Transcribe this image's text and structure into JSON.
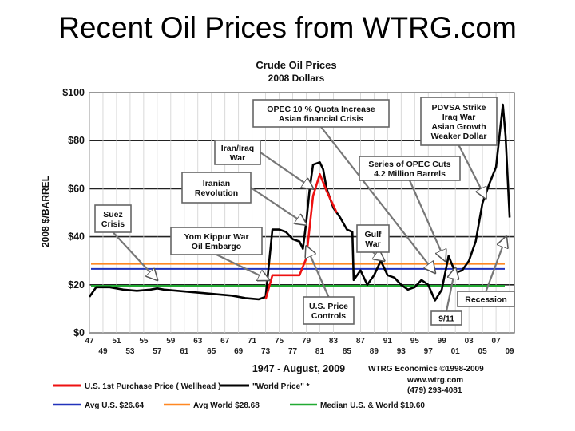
{
  "slide": {
    "title": "Recent Oil Prices from WTRG.com"
  },
  "chart_data": {
    "type": "line",
    "title": "Crude Oil Prices",
    "subtitle": "2008 Dollars",
    "ylabel": "2008 $/BARREL",
    "xlabel": "1947 - August, 2009",
    "ylim": [
      0,
      100
    ],
    "xlim": [
      1947,
      2009.7
    ],
    "yticks": [
      {
        "value": 0,
        "label": "$0"
      },
      {
        "value": 20,
        "label": "$20"
      },
      {
        "value": 40,
        "label": "$40"
      },
      {
        "value": 60,
        "label": "$60"
      },
      {
        "value": 80,
        "label": "$80"
      },
      {
        "value": 100,
        "label": "$100"
      }
    ],
    "xticks_top": [
      "47",
      "51",
      "55",
      "59",
      "63",
      "67",
      "71",
      "75",
      "79",
      "83",
      "87",
      "91",
      "95",
      "99",
      "03",
      "07"
    ],
    "xticks_top_years": [
      1947,
      1951,
      1955,
      1959,
      1963,
      1967,
      1971,
      1975,
      1979,
      1983,
      1987,
      1991,
      1995,
      1999,
      2003,
      2007
    ],
    "xticks_bottom": [
      "49",
      "53",
      "57",
      "61",
      "65",
      "69",
      "73",
      "77",
      "81",
      "85",
      "89",
      "93",
      "97",
      "01",
      "05",
      "09"
    ],
    "xticks_bottom_years": [
      1949,
      1953,
      1957,
      1961,
      1965,
      1969,
      1973,
      1977,
      1981,
      1985,
      1989,
      1993,
      1997,
      2001,
      2005,
      2009
    ],
    "grid": true,
    "series": [
      {
        "name": "\"World Price\" *",
        "color": "#000000",
        "points": [
          [
            1947,
            15
          ],
          [
            1948,
            19
          ],
          [
            1950,
            19
          ],
          [
            1952,
            18
          ],
          [
            1954,
            17.5
          ],
          [
            1956,
            18
          ],
          [
            1957,
            18.5
          ],
          [
            1958,
            18
          ],
          [
            1960,
            17.5
          ],
          [
            1962,
            17
          ],
          [
            1964,
            16.5
          ],
          [
            1966,
            16
          ],
          [
            1968,
            15.5
          ],
          [
            1970,
            14.5
          ],
          [
            1972,
            14
          ],
          [
            1973,
            15
          ],
          [
            1974,
            43
          ],
          [
            1975,
            43
          ],
          [
            1976,
            42
          ],
          [
            1977,
            39
          ],
          [
            1978,
            38
          ],
          [
            1978.5,
            35
          ],
          [
            1979,
            46
          ],
          [
            1979.5,
            60
          ],
          [
            1980,
            70
          ],
          [
            1981,
            71
          ],
          [
            1981.5,
            68
          ],
          [
            1982,
            60
          ],
          [
            1983,
            52
          ],
          [
            1984,
            48
          ],
          [
            1985,
            43
          ],
          [
            1985.8,
            42
          ],
          [
            1986,
            22
          ],
          [
            1987,
            26
          ],
          [
            1988,
            20
          ],
          [
            1989,
            24
          ],
          [
            1990,
            30
          ],
          [
            1991,
            24
          ],
          [
            1992,
            23
          ],
          [
            1993,
            20
          ],
          [
            1994,
            18
          ],
          [
            1995,
            19
          ],
          [
            1996,
            22
          ],
          [
            1997,
            20
          ],
          [
            1998,
            13.5
          ],
          [
            1999,
            18
          ],
          [
            2000,
            32
          ],
          [
            2001,
            25
          ],
          [
            2002,
            26
          ],
          [
            2003,
            30
          ],
          [
            2004,
            38
          ],
          [
            2005,
            54
          ],
          [
            2006,
            62
          ],
          [
            2007,
            69
          ],
          [
            2008,
            95
          ],
          [
            2008.4,
            82
          ],
          [
            2009,
            48
          ]
        ]
      },
      {
        "name": "U.S. 1st Purchase Price ( Wellhead )",
        "color": "#ee1111",
        "points": [
          [
            1973,
            14
          ],
          [
            1974,
            24
          ],
          [
            1975,
            24
          ],
          [
            1976,
            24
          ],
          [
            1977,
            24
          ],
          [
            1978,
            24
          ],
          [
            1979,
            31
          ],
          [
            1980,
            57
          ],
          [
            1981,
            66
          ],
          [
            1982,
            59
          ],
          [
            1983,
            53
          ],
          [
            1983.5,
            50
          ]
        ]
      }
    ],
    "reference_lines": [
      {
        "name": "Avg U.S. $26.64",
        "value": 26.64,
        "color": "#2233bb"
      },
      {
        "name": "Avg World $28.68",
        "value": 28.68,
        "color": "#ff8822"
      },
      {
        "name": "Median U.S. & World $19.60",
        "value": 19.6,
        "color": "#22aa33"
      }
    ],
    "annotations": [
      {
        "text": [
          "OPEC 10 % Quota Increase",
          "Asian financial Crisis"
        ],
        "x": 1998,
        "y": 25
      },
      {
        "text": [
          "PDVSA Strike",
          "Iraq War",
          "Asian Growth",
          "Weaker Dollar"
        ],
        "x": 2005.5,
        "y": 56
      },
      {
        "text": [
          "Iran/Iraq",
          "War"
        ],
        "x": 1980,
        "y": 60
      },
      {
        "text": [
          "Series of OPEC Cuts",
          "4.2 Million Barrels"
        ],
        "x": 1999.5,
        "y": 30
      },
      {
        "text": [
          "Iranian",
          "Revolution"
        ],
        "x": 1979,
        "y": 45
      },
      {
        "text": [
          "Suez",
          "Crisis"
        ],
        "x": 1957,
        "y": 22
      },
      {
        "text": [
          "Yom Kippur War",
          "Oil Embargo"
        ],
        "x": 1973.5,
        "y": 22
      },
      {
        "text": [
          "Gulf",
          "War"
        ],
        "x": 1990.5,
        "y": 30
      },
      {
        "text": [
          "U.S. Price",
          "Controls"
        ],
        "x": 1979,
        "y": 36
      },
      {
        "text": [
          "9/11"
        ],
        "x": 2001,
        "y": 27
      },
      {
        "text": [
          "Recession"
        ],
        "x": 2008.5,
        "y": 40
      }
    ],
    "credits": [
      "WTRG Economics ©1998-2009",
      "www.wtrg.com",
      "(479) 293-4081"
    ]
  }
}
